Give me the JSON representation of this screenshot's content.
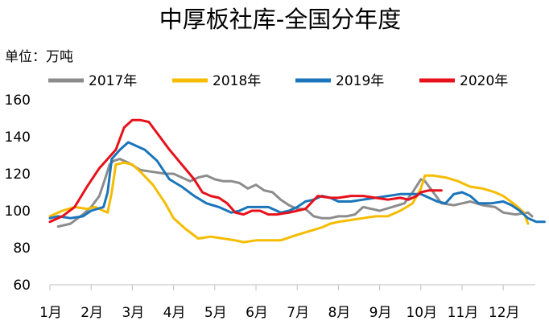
{
  "chart_data": {
    "type": "line",
    "title": "中厚板社库-全国分年度",
    "unit_label": "单位：万吨",
    "x_tick_labels": [
      "1月",
      "2月",
      "3月",
      "4月",
      "5月",
      "6月",
      "7月",
      "8月",
      "9月",
      "10月",
      "11月",
      "12月"
    ],
    "y_tick_labels": [
      "60",
      "80",
      "100",
      "120",
      "140",
      "160"
    ],
    "ylim": [
      60,
      160
    ],
    "xlim": [
      0,
      11.7
    ],
    "grid": false,
    "legend_position": "top",
    "series": [
      {
        "name": "2017年",
        "color": "#8c8c8c",
        "points": [
          [
            0.2,
            91.5
          ],
          [
            0.5,
            93
          ],
          [
            0.8,
            98
          ],
          [
            1.0,
            102
          ],
          [
            1.2,
            108
          ],
          [
            1.35,
            118
          ],
          [
            1.45,
            125
          ],
          [
            1.55,
            127
          ],
          [
            1.7,
            128
          ],
          [
            1.9,
            126
          ],
          [
            2.2,
            122
          ],
          [
            2.5,
            121
          ],
          [
            2.8,
            120
          ],
          [
            3.0,
            120
          ],
          [
            3.2,
            118
          ],
          [
            3.4,
            116
          ],
          [
            3.6,
            118
          ],
          [
            3.8,
            119
          ],
          [
            4.0,
            117
          ],
          [
            4.2,
            116
          ],
          [
            4.4,
            116
          ],
          [
            4.6,
            115
          ],
          [
            4.8,
            112
          ],
          [
            5.0,
            114
          ],
          [
            5.2,
            111
          ],
          [
            5.4,
            110
          ],
          [
            5.6,
            106
          ],
          [
            5.8,
            103
          ],
          [
            6.0,
            101
          ],
          [
            6.2,
            101
          ],
          [
            6.4,
            97
          ],
          [
            6.6,
            96
          ],
          [
            6.8,
            96
          ],
          [
            7.0,
            97
          ],
          [
            7.2,
            97
          ],
          [
            7.4,
            98
          ],
          [
            7.6,
            102
          ],
          [
            7.8,
            101
          ],
          [
            8.0,
            100
          ],
          [
            8.3,
            102
          ],
          [
            8.6,
            104
          ],
          [
            8.8,
            110
          ],
          [
            9.0,
            117
          ],
          [
            9.1,
            116
          ],
          [
            9.3,
            110
          ],
          [
            9.5,
            104
          ],
          [
            9.8,
            103
          ],
          [
            10.0,
            104
          ],
          [
            10.2,
            105
          ],
          [
            10.5,
            103
          ],
          [
            10.8,
            102
          ],
          [
            11.0,
            99
          ],
          [
            11.3,
            98
          ],
          [
            11.6,
            99
          ],
          [
            11.7,
            97
          ]
        ]
      },
      {
        "name": "2018年",
        "color": "#f5bc00",
        "points": [
          [
            0.0,
            97
          ],
          [
            0.3,
            100
          ],
          [
            0.6,
            102
          ],
          [
            0.9,
            101
          ],
          [
            1.1,
            102
          ],
          [
            1.3,
            100
          ],
          [
            1.4,
            99
          ],
          [
            1.5,
            110
          ],
          [
            1.6,
            125
          ],
          [
            1.8,
            126
          ],
          [
            2.0,
            125
          ],
          [
            2.2,
            121
          ],
          [
            2.5,
            114
          ],
          [
            2.8,
            104
          ],
          [
            3.0,
            96
          ],
          [
            3.3,
            90
          ],
          [
            3.6,
            85
          ],
          [
            3.9,
            86
          ],
          [
            4.2,
            85
          ],
          [
            4.5,
            84
          ],
          [
            4.7,
            83
          ],
          [
            5.0,
            84
          ],
          [
            5.3,
            84
          ],
          [
            5.6,
            84
          ],
          [
            6.0,
            87
          ],
          [
            6.3,
            89
          ],
          [
            6.6,
            91
          ],
          [
            6.8,
            93
          ],
          [
            7.0,
            94
          ],
          [
            7.3,
            95
          ],
          [
            7.6,
            96
          ],
          [
            7.9,
            97
          ],
          [
            8.2,
            97
          ],
          [
            8.5,
            100
          ],
          [
            8.8,
            104
          ],
          [
            9.0,
            112
          ],
          [
            9.1,
            119
          ],
          [
            9.3,
            119
          ],
          [
            9.6,
            118
          ],
          [
            9.9,
            116
          ],
          [
            10.2,
            113
          ],
          [
            10.5,
            112
          ],
          [
            10.8,
            110
          ],
          [
            11.0,
            108
          ],
          [
            11.3,
            103
          ],
          [
            11.5,
            99
          ],
          [
            11.6,
            93
          ]
        ]
      },
      {
        "name": "2019年",
        "color": "#1a75bb",
        "points": [
          [
            0.0,
            96
          ],
          [
            0.2,
            97
          ],
          [
            0.5,
            96
          ],
          [
            0.8,
            97
          ],
          [
            1.0,
            100
          ],
          [
            1.3,
            102
          ],
          [
            1.4,
            110
          ],
          [
            1.5,
            128
          ],
          [
            1.7,
            133
          ],
          [
            1.9,
            137
          ],
          [
            2.1,
            135
          ],
          [
            2.3,
            133
          ],
          [
            2.6,
            127
          ],
          [
            2.9,
            117
          ],
          [
            3.2,
            113
          ],
          [
            3.5,
            108
          ],
          [
            3.8,
            104
          ],
          [
            4.1,
            102
          ],
          [
            4.4,
            99
          ],
          [
            4.6,
            100
          ],
          [
            4.8,
            102
          ],
          [
            5.0,
            102
          ],
          [
            5.3,
            102
          ],
          [
            5.6,
            99
          ],
          [
            5.8,
            100
          ],
          [
            6.0,
            102
          ],
          [
            6.2,
            105
          ],
          [
            6.4,
            106
          ],
          [
            6.6,
            108
          ],
          [
            6.8,
            107
          ],
          [
            7.0,
            105
          ],
          [
            7.3,
            105
          ],
          [
            7.6,
            106
          ],
          [
            7.9,
            107
          ],
          [
            8.2,
            108
          ],
          [
            8.5,
            109
          ],
          [
            8.8,
            109
          ],
          [
            9.0,
            109
          ],
          [
            9.2,
            107
          ],
          [
            9.4,
            105
          ],
          [
            9.6,
            104
          ],
          [
            9.8,
            109
          ],
          [
            10.0,
            110
          ],
          [
            10.2,
            108
          ],
          [
            10.4,
            104
          ],
          [
            10.7,
            104
          ],
          [
            11.0,
            105
          ],
          [
            11.2,
            103
          ],
          [
            11.4,
            100
          ],
          [
            11.6,
            96
          ],
          [
            11.8,
            94
          ],
          [
            12.0,
            94
          ]
        ]
      },
      {
        "name": "2020年",
        "color": "#e8101a",
        "points": [
          [
            0.0,
            94
          ],
          [
            0.3,
            97
          ],
          [
            0.6,
            102
          ],
          [
            0.9,
            113
          ],
          [
            1.2,
            123
          ],
          [
            1.4,
            128
          ],
          [
            1.6,
            133
          ],
          [
            1.8,
            145
          ],
          [
            2.0,
            149
          ],
          [
            2.2,
            149
          ],
          [
            2.4,
            148
          ],
          [
            2.6,
            142
          ],
          [
            2.9,
            133
          ],
          [
            3.2,
            125
          ],
          [
            3.5,
            117
          ],
          [
            3.7,
            110
          ],
          [
            3.9,
            108
          ],
          [
            4.1,
            107
          ],
          [
            4.3,
            104
          ],
          [
            4.5,
            99
          ],
          [
            4.7,
            98
          ],
          [
            4.9,
            100
          ],
          [
            5.1,
            100
          ],
          [
            5.3,
            98
          ],
          [
            5.5,
            98
          ],
          [
            5.8,
            99
          ],
          [
            6.0,
            100
          ],
          [
            6.2,
            101
          ],
          [
            6.5,
            108
          ],
          [
            6.8,
            107
          ],
          [
            7.0,
            107
          ],
          [
            7.3,
            108
          ],
          [
            7.6,
            108
          ],
          [
            7.9,
            107
          ],
          [
            8.2,
            106
          ],
          [
            8.5,
            107
          ],
          [
            8.7,
            106
          ],
          [
            8.9,
            108
          ],
          [
            9.0,
            110
          ],
          [
            9.2,
            111
          ],
          [
            9.5,
            111
          ]
        ]
      }
    ]
  }
}
